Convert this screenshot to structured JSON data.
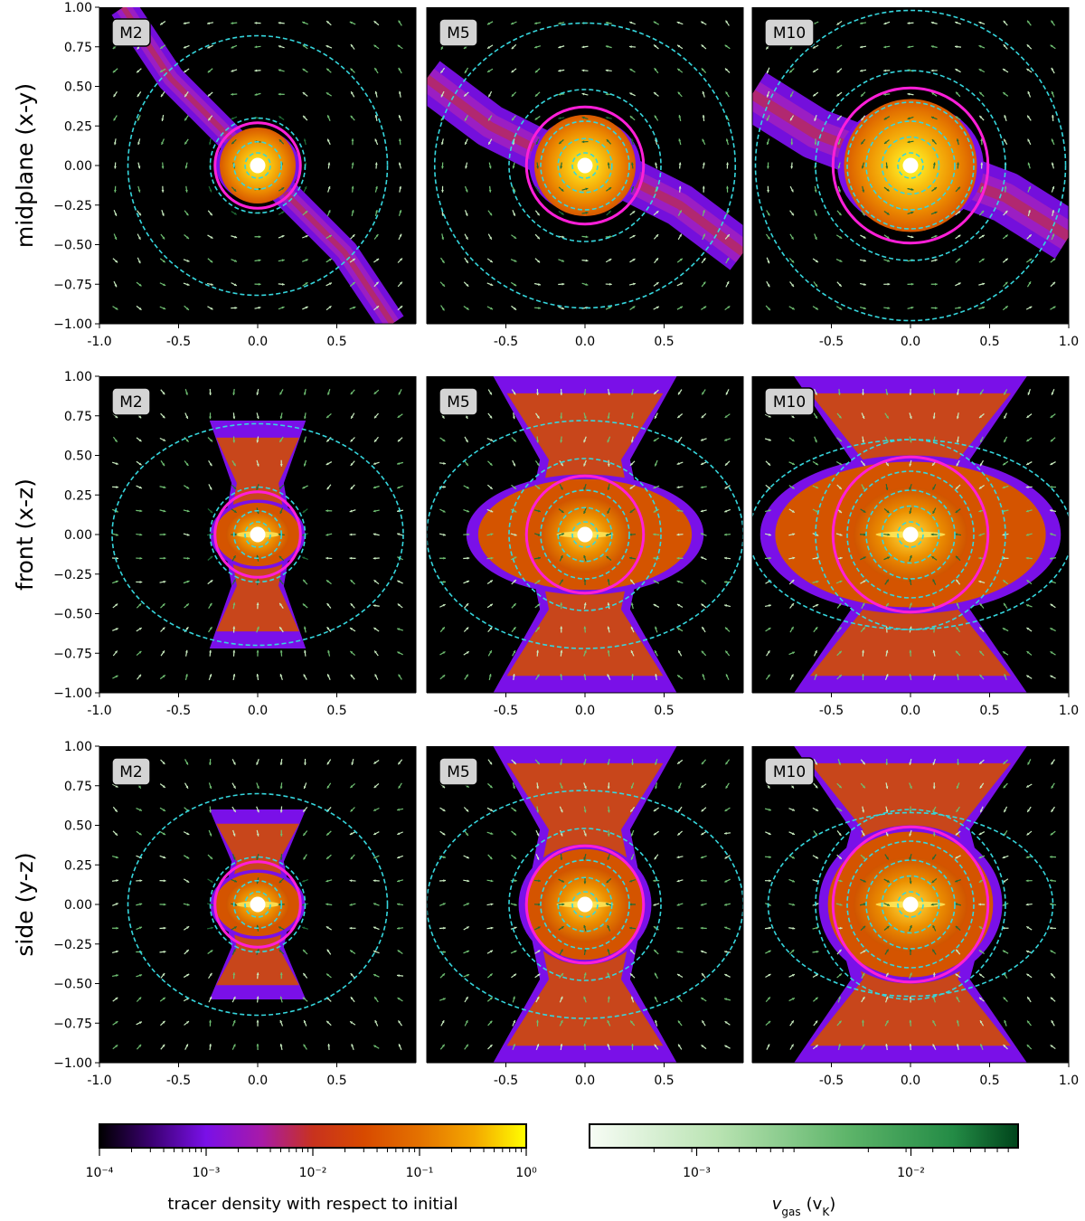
{
  "chart_data": {
    "type": "heatmap",
    "rows": [
      {
        "label": "midplane (x-y)"
      },
      {
        "label": "front (x-z)"
      },
      {
        "label": "side (y-z)"
      }
    ],
    "columns": [
      {
        "label": "M2",
        "roche_radius": 0.27
      },
      {
        "label": "M5",
        "roche_radius": 0.37
      },
      {
        "label": "M10",
        "roche_radius": 0.49
      }
    ],
    "axes": {
      "xlim": [
        -1.0,
        1.0
      ],
      "ylim": [
        -1.0,
        1.0
      ],
      "xticks_first_col": [
        "-1.0",
        "-0.5",
        "0.0",
        "0.5"
      ],
      "xticks_mid_col": [
        "-0.5",
        "0.0",
        "0.5"
      ],
      "xticks_last_col": [
        "-0.5",
        "0.0",
        "0.5",
        "1.0"
      ],
      "xtick_values_first_col": [
        -1.0,
        -0.5,
        0.0,
        0.5
      ],
      "xtick_values_mid_col": [
        -0.5,
        0.0,
        0.5
      ],
      "xtick_values_last_col": [
        -0.5,
        0.0,
        0.5,
        1.0
      ],
      "yticks": [
        "1.00",
        "0.75",
        "0.50",
        "0.25",
        "0.00",
        "−0.25",
        "−0.50",
        "−0.75",
        "−1.00"
      ],
      "ytick_values": [
        1.0,
        0.75,
        0.5,
        0.25,
        0.0,
        -0.25,
        -0.5,
        -0.75,
        -1.0
      ]
    },
    "colorbars": [
      {
        "title": "tracer density with respect to initial",
        "colormap": "gnuplot",
        "scale": "log",
        "range": [
          0.0001,
          1
        ],
        "ticks": [
          "10⁻⁴",
          "10⁻³",
          "10⁻²",
          "10⁻¹",
          "10⁰"
        ]
      },
      {
        "title": "v_gas (v_K)",
        "title_main": "v",
        "title_sub": "gas",
        "title_units_main": "(v",
        "title_units_sub": "K",
        "title_units_close": ")",
        "colormap": "Greens",
        "scale": "log",
        "range": [
          0.0003,
          0.03
        ],
        "ticks": [
          "10⁻³",
          "10⁻²"
        ]
      }
    ],
    "styles": {
      "roche_circle_color": "#ff1fd8",
      "contour_color": "#35d6dd",
      "background_color": "#000000",
      "star_color": "#ffffff"
    }
  }
}
